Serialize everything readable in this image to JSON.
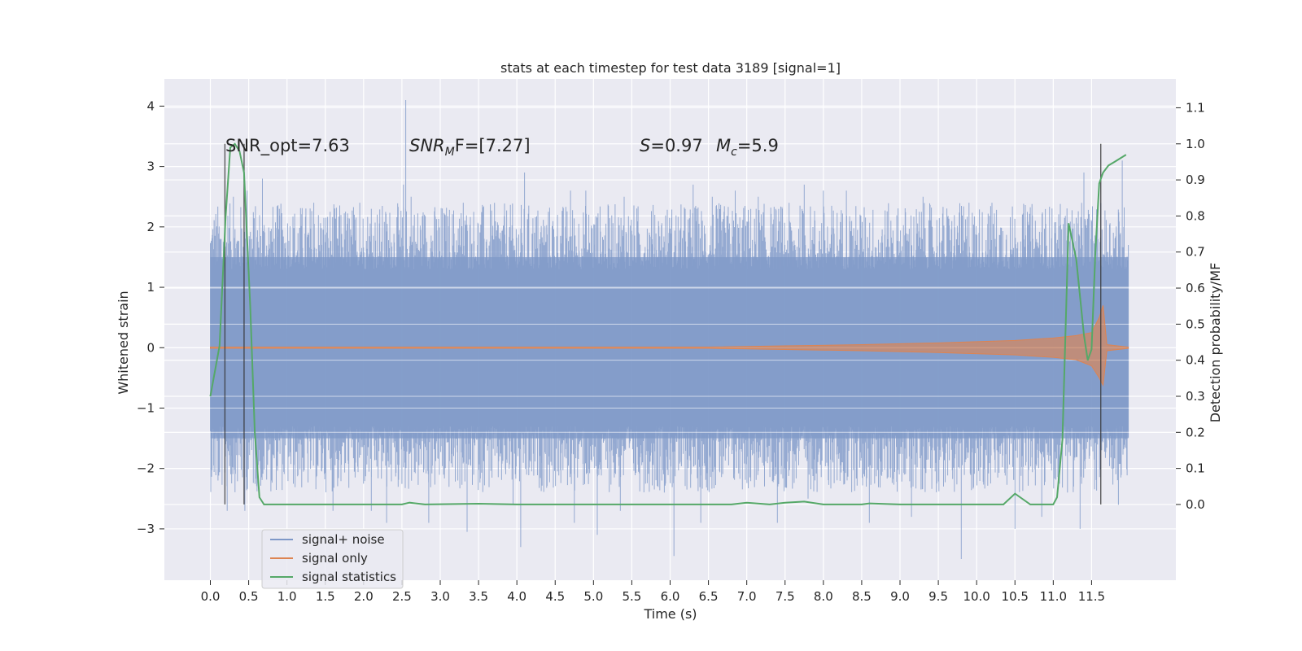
{
  "chart_data": {
    "type": "line",
    "title": "stats at each timestep for test data 3189 [signal=1]",
    "xlabel": "Time (s)",
    "ylabel": "Whitened strain",
    "y2label": "Detection probability/MF",
    "xlim": [
      -0.6,
      12.6
    ],
    "ylim": [
      -3.85,
      4.45
    ],
    "y2lim": [
      -0.21,
      1.18
    ],
    "xticks": [
      0.0,
      0.5,
      1.0,
      1.5,
      2.0,
      2.5,
      3.0,
      3.5,
      4.0,
      4.5,
      5.0,
      5.5,
      6.0,
      6.5,
      7.0,
      7.5,
      8.0,
      8.5,
      9.0,
      9.5,
      10.0,
      10.5,
      11.0,
      11.5
    ],
    "xtick_labels": [
      "0.0",
      "0.5",
      "1.0",
      "1.5",
      "2.0",
      "2.5",
      "3.0",
      "3.5",
      "4.0",
      "4.5",
      "5.0",
      "5.5",
      "6.0",
      "6.5",
      "7.0",
      "7.5",
      "8.0",
      "8.5",
      "9.0",
      "9.5",
      "10.0",
      "10.5",
      "11.0",
      "11.5"
    ],
    "yticks": [
      -3,
      -2,
      -1,
      0,
      1,
      2,
      3,
      4
    ],
    "ytick_labels": [
      "−3",
      "−2",
      "−1",
      "0",
      "1",
      "2",
      "3",
      "4"
    ],
    "y2ticks": [
      0.0,
      0.1,
      0.2,
      0.3,
      0.4,
      0.5,
      0.6,
      0.7,
      0.8,
      0.9,
      1.0,
      1.1
    ],
    "y2tick_labels": [
      "0.0",
      "0.1",
      "0.2",
      "0.3",
      "0.4",
      "0.5",
      "0.6",
      "0.7",
      "0.8",
      "0.9",
      "1.0",
      "1.1"
    ],
    "grid": true,
    "legend_position": "bottom-left",
    "annotations": {
      "snr_opt": "SNR_opt=7.63",
      "snr_mf_base": "SNR",
      "snr_mf_sub": "M",
      "snr_mf_rest": "F=[7.27]",
      "s_label": "S",
      "s_value": "=0.97",
      "mc_base": "M",
      "mc_sub": "c",
      "mc_value": "=5.9"
    },
    "vertical_lines": [
      0.19,
      0.44,
      11.62
    ],
    "series": [
      {
        "name": "signal+ noise",
        "color": "#7e98c8",
        "axis": "left",
        "x_range": [
          0.0,
          11.98
        ],
        "band_upper": 1.5,
        "band_lower": -1.5,
        "peaks_upper": [
          [
            0.05,
            2.1
          ],
          [
            0.3,
            2.5
          ],
          [
            0.48,
            2.6
          ],
          [
            0.68,
            2.8
          ],
          [
            0.9,
            2.3
          ],
          [
            1.35,
            2.4
          ],
          [
            1.95,
            2.4
          ],
          [
            2.1,
            2.3
          ],
          [
            2.55,
            4.1
          ],
          [
            2.52,
            2.7
          ],
          [
            2.62,
            2.5
          ],
          [
            3.3,
            2.4
          ],
          [
            4.1,
            2.9
          ],
          [
            4.7,
            2.6
          ],
          [
            4.9,
            2.6
          ],
          [
            5.4,
            2.5
          ],
          [
            5.8,
            2.2
          ],
          [
            6.3,
            2.7
          ],
          [
            6.55,
            2.5
          ],
          [
            6.85,
            2.6
          ],
          [
            7.15,
            2.5
          ],
          [
            7.75,
            2.7
          ],
          [
            8.0,
            2.6
          ],
          [
            8.3,
            2.6
          ],
          [
            9.3,
            2.5
          ],
          [
            9.9,
            2.4
          ],
          [
            10.2,
            2.4
          ],
          [
            11.4,
            2.9
          ],
          [
            11.9,
            3.1
          ]
        ],
        "peaks_lower": [
          [
            0.1,
            -2.2
          ],
          [
            0.22,
            -2.7
          ],
          [
            0.45,
            -2.7
          ],
          [
            0.8,
            -2.2
          ],
          [
            1.6,
            -2.7
          ],
          [
            2.1,
            -2.7
          ],
          [
            2.3,
            -2.9
          ],
          [
            2.85,
            -2.9
          ],
          [
            3.35,
            -3.05
          ],
          [
            3.95,
            -2.6
          ],
          [
            4.05,
            -3.3
          ],
          [
            4.75,
            -2.9
          ],
          [
            5.05,
            -3.1
          ],
          [
            5.35,
            -2.7
          ],
          [
            6.05,
            -3.45
          ],
          [
            6.4,
            -2.9
          ],
          [
            7.4,
            -2.9
          ],
          [
            7.8,
            -2.5
          ],
          [
            8.6,
            -2.9
          ],
          [
            9.15,
            -2.8
          ],
          [
            9.8,
            -3.5
          ],
          [
            10.5,
            -3.0
          ],
          [
            10.85,
            -2.8
          ],
          [
            11.35,
            -3.0
          ],
          [
            11.85,
            -2.6
          ]
        ]
      },
      {
        "name": "signal only",
        "color": "#dd8452",
        "axis": "left",
        "x": [
          0.0,
          6.5,
          7.5,
          8.5,
          9.5,
          10.5,
          11.0,
          11.3,
          11.5,
          11.6,
          11.65,
          11.7,
          11.98
        ],
        "upper": [
          0.01,
          0.01,
          0.03,
          0.05,
          0.08,
          0.12,
          0.16,
          0.2,
          0.25,
          0.5,
          0.7,
          0.05,
          0.01
        ],
        "lower": [
          -0.01,
          -0.01,
          -0.03,
          -0.05,
          -0.08,
          -0.12,
          -0.16,
          -0.2,
          -0.3,
          -0.5,
          -0.62,
          -0.05,
          -0.01
        ]
      },
      {
        "name": "signal statistics",
        "color": "#55a868",
        "axis": "right",
        "x": [
          0.0,
          0.12,
          0.2,
          0.26,
          0.32,
          0.38,
          0.44,
          0.52,
          0.58,
          0.64,
          0.7,
          1.5,
          2.5,
          2.6,
          2.8,
          3.5,
          4.0,
          5.0,
          6.0,
          6.8,
          7.0,
          7.3,
          7.5,
          7.75,
          8.0,
          8.5,
          8.6,
          9.0,
          10.0,
          10.35,
          10.5,
          10.7,
          11.0,
          11.05,
          11.12,
          11.2,
          11.3,
          11.4,
          11.45,
          11.5,
          11.55,
          11.6,
          11.65,
          11.72,
          11.8,
          11.95
        ],
        "y": [
          0.3,
          0.44,
          0.8,
          0.99,
          1.0,
          0.98,
          0.92,
          0.55,
          0.2,
          0.02,
          0.0,
          0.0,
          0.0,
          0.005,
          0.0,
          0.002,
          0.0,
          0.0,
          0.0,
          0.0,
          0.005,
          0.0,
          0.005,
          0.008,
          0.0,
          0.0,
          0.003,
          0.0,
          0.0,
          0.0,
          0.03,
          0.0,
          0.0,
          0.02,
          0.18,
          0.78,
          0.68,
          0.47,
          0.4,
          0.43,
          0.7,
          0.89,
          0.92,
          0.94,
          0.95,
          0.97
        ]
      }
    ]
  }
}
